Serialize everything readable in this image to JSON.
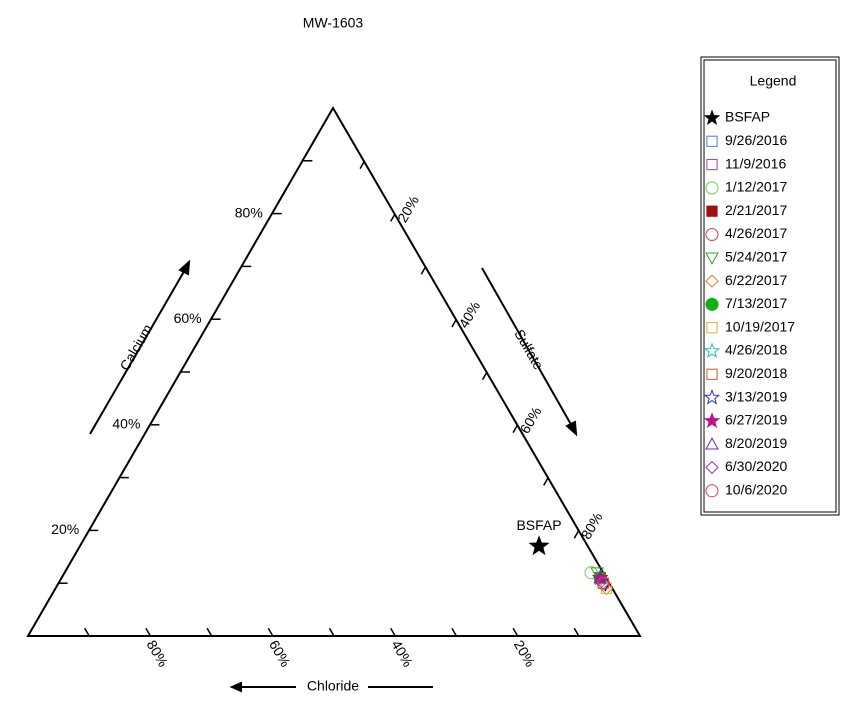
{
  "chart_data": {
    "type": "ternary",
    "title": "MW-1603",
    "calcium_axis": {
      "label": "Calcium",
      "ticks": [
        {
          "value": 20,
          "label": "20%"
        },
        {
          "value": 40,
          "label": "40%"
        },
        {
          "value": 60,
          "label": "60%"
        },
        {
          "value": 80,
          "label": "80%"
        }
      ],
      "minor_ticks": [
        10,
        30,
        50,
        70,
        90
      ]
    },
    "sulfate_axis": {
      "label": "Sulfate",
      "ticks": [
        {
          "value": 20,
          "label": "20%"
        },
        {
          "value": 40,
          "label": "40%"
        },
        {
          "value": 60,
          "label": "60%"
        },
        {
          "value": 80,
          "label": "80%"
        }
      ],
      "minor_ticks": [
        10,
        30,
        50,
        70,
        90
      ]
    },
    "chloride_axis": {
      "label": "Chloride",
      "ticks": [
        {
          "value": 20,
          "label": "20%"
        },
        {
          "value": 40,
          "label": "40%"
        },
        {
          "value": 60,
          "label": "60%"
        },
        {
          "value": 80,
          "label": "80%"
        }
      ],
      "minor_ticks": [
        10,
        30,
        50,
        70,
        90
      ]
    },
    "legend_title": "Legend",
    "series": [
      {
        "name": "BSFAP",
        "color": "#000000",
        "marker": "star-filled",
        "calcium": 17,
        "sulfate": 75,
        "chloride": 8
      },
      {
        "name": "9/26/2016",
        "color": "#4a7fd4",
        "marker": "square",
        "calcium": 11,
        "sulfate": 88,
        "chloride": 1
      },
      {
        "name": "11/9/2016",
        "color": "#a040c0",
        "marker": "square",
        "calcium": 11,
        "sulfate": 88,
        "chloride": 1
      },
      {
        "name": "1/12/2017",
        "color": "#70d050",
        "marker": "circle",
        "calcium": 12,
        "sulfate": 86,
        "chloride": 2
      },
      {
        "name": "2/21/2017",
        "color": "#a01010",
        "marker": "square-filled",
        "calcium": 11,
        "sulfate": 88,
        "chloride": 1
      },
      {
        "name": "4/26/2017",
        "color": "#d04060",
        "marker": "circle",
        "calcium": 11,
        "sulfate": 88,
        "chloride": 1
      },
      {
        "name": "5/24/2017",
        "color": "#30a030",
        "marker": "triangle-down",
        "calcium": 12,
        "sulfate": 87,
        "chloride": 1
      },
      {
        "name": "6/22/2017",
        "color": "#e08030",
        "marker": "diamond",
        "calcium": 9,
        "sulfate": 90,
        "chloride": 1
      },
      {
        "name": "7/13/2017",
        "color": "#10b010",
        "marker": "circle-filled",
        "calcium": 11,
        "sulfate": 88,
        "chloride": 1
      },
      {
        "name": "10/19/2017",
        "color": "#e0b030",
        "marker": "square",
        "calcium": 9,
        "sulfate": 90,
        "chloride": 1
      },
      {
        "name": "4/26/2018",
        "color": "#30c0b0",
        "marker": "star",
        "calcium": 11,
        "sulfate": 88,
        "chloride": 1
      },
      {
        "name": "9/20/2018",
        "color": "#e05030",
        "marker": "square",
        "calcium": 10,
        "sulfate": 89,
        "chloride": 1
      },
      {
        "name": "3/13/2019",
        "color": "#3030c0",
        "marker": "star",
        "calcium": 11,
        "sulfate": 88,
        "chloride": 1
      },
      {
        "name": "6/27/2019",
        "color": "#c0108c",
        "marker": "star-filled",
        "calcium": 11,
        "sulfate": 88,
        "chloride": 1
      },
      {
        "name": "8/20/2019",
        "color": "#6030a0",
        "marker": "triangle",
        "calcium": 11,
        "sulfate": 88,
        "chloride": 1
      },
      {
        "name": "6/30/2020",
        "color": "#a030c0",
        "marker": "diamond",
        "calcium": 10,
        "sulfate": 89,
        "chloride": 1
      },
      {
        "name": "10/6/2020",
        "color": "#d04060",
        "marker": "circle",
        "calcium": 10,
        "sulfate": 89,
        "chloride": 1
      }
    ]
  }
}
